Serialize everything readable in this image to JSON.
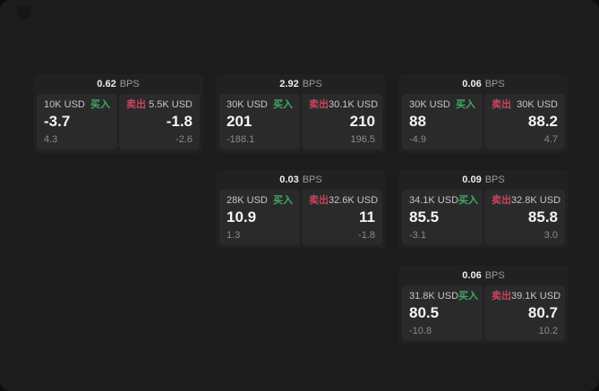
{
  "labels": {
    "buy": "买入",
    "sell": "卖出",
    "bps": "BPS"
  },
  "colors": {
    "buy_green": "#41a963",
    "sell_red": "#c7455c",
    "panel_bg": "#1c1c1d",
    "card_bg": "#212122",
    "subcard_bg": "#2a2a2b"
  },
  "cards": [
    {
      "bps": "0.62",
      "buy": {
        "amount": "10K USD",
        "value": "-3.7",
        "sub": "4.3"
      },
      "sell": {
        "amount": "5.5K USD",
        "value": "-1.8",
        "sub": "-2.6"
      }
    },
    {
      "bps": "2.92",
      "buy": {
        "amount": "30K USD",
        "value": "201",
        "sub": "-188.1"
      },
      "sell": {
        "amount": "30.1K USD",
        "value": "210",
        "sub": "196.5"
      }
    },
    {
      "bps": "0.06",
      "buy": {
        "amount": "30K USD",
        "value": "88",
        "sub": "-4.9"
      },
      "sell": {
        "amount": "30K USD",
        "value": "88.2",
        "sub": "4.7"
      }
    },
    {
      "bps": "0.03",
      "buy": {
        "amount": "28K USD",
        "value": "10.9",
        "sub": "1.3"
      },
      "sell": {
        "amount": "32.6K USD",
        "value": "11",
        "sub": "-1.8"
      }
    },
    {
      "bps": "0.09",
      "buy": {
        "amount": "34.1K USD",
        "value": "85.5",
        "sub": "-3.1"
      },
      "sell": {
        "amount": "32.8K USD",
        "value": "85.8",
        "sub": "3.0"
      }
    },
    {
      "bps": "0.06",
      "buy": {
        "amount": "31.8K USD",
        "value": "80.5",
        "sub": "-10.8"
      },
      "sell": {
        "amount": "39.1K USD",
        "value": "80.7",
        "sub": "10.2"
      }
    }
  ]
}
